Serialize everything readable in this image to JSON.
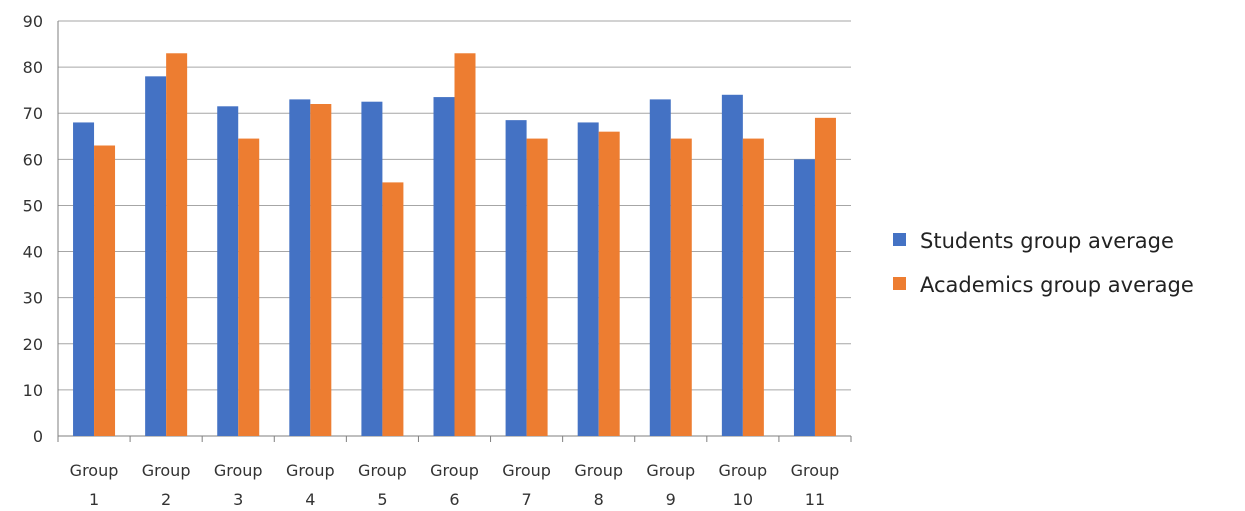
{
  "chart_data": {
    "type": "bar",
    "categories": [
      [
        "Group",
        "1"
      ],
      [
        "Group",
        "2"
      ],
      [
        "Group",
        "3"
      ],
      [
        "Group",
        "4"
      ],
      [
        "Group",
        "5"
      ],
      [
        "Group",
        "6"
      ],
      [
        "Group",
        "7"
      ],
      [
        "Group",
        "8"
      ],
      [
        "Group",
        "9"
      ],
      [
        "Group",
        "10"
      ],
      [
        "Group",
        "11"
      ]
    ],
    "series": [
      {
        "name": "Students group average",
        "color": "#4472C4",
        "values": [
          68,
          78,
          71.5,
          73,
          72.5,
          73.5,
          68.5,
          68,
          73,
          74,
          60
        ]
      },
      {
        "name": "Academics group average",
        "color": "#ED7D31",
        "values": [
          63,
          83,
          64.5,
          72,
          55,
          83,
          64.5,
          66,
          64.5,
          64.5,
          69
        ]
      }
    ],
    "ylim": [
      0,
      90
    ],
    "yticks": [
      "0",
      "10",
      "20",
      "30",
      "40",
      "50",
      "60",
      "70",
      "80",
      "90"
    ],
    "grid": true,
    "legend_position": "right",
    "title": "",
    "xlabel": "",
    "ylabel": ""
  }
}
